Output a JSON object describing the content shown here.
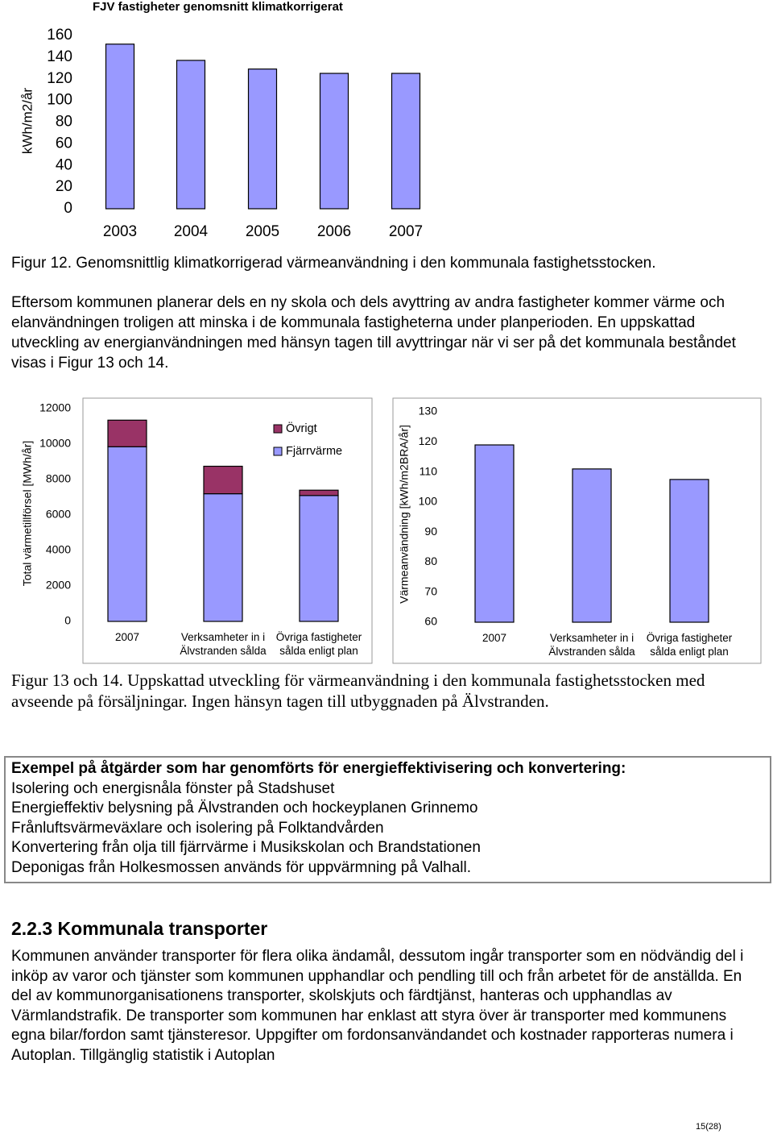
{
  "chart_data": [
    {
      "type": "bar",
      "title": "FJV fastigheter genomsnitt klimatkorrigerat",
      "y_label": "kWh/m2/år",
      "categories": [
        "2003",
        "2004",
        "2005",
        "2006",
        "2007"
      ],
      "values": [
        152,
        137,
        129,
        125,
        125
      ],
      "color": "#9999ff",
      "ylim": [
        0,
        160
      ],
      "yticks": [
        0,
        20,
        40,
        60,
        80,
        100,
        120,
        140,
        160
      ],
      "grid": false
    },
    {
      "type": "stacked_bar",
      "y_label": "Total värmetillförsel [MWh/år]",
      "categories": [
        "2007",
        "Verksamheter in i Älvstranden sålda",
        "Övriga fastigheter sålda enligt plan"
      ],
      "series": [
        {
          "name": "Fjärrvärme",
          "color": "#9999ff",
          "values": [
            9850,
            7200,
            7100
          ]
        },
        {
          "name": "Övrigt",
          "color": "#993366",
          "values": [
            1500,
            1550,
            300
          ]
        }
      ],
      "ylim": [
        0,
        12000
      ],
      "yticks": [
        0,
        2000,
        4000,
        6000,
        8000,
        10000,
        12000
      ],
      "grid": false,
      "legend": "top-right"
    },
    {
      "type": "bar",
      "y_label": "Värmeanvändning [kWh/m2BRA/år]",
      "categories": [
        "2007",
        "Verksamheter in i Älvstranden sålda",
        "Övriga fastigheter sålda enligt plan"
      ],
      "values": [
        119,
        111,
        107.5
      ],
      "color": "#9999ff",
      "ylim": [
        60,
        130
      ],
      "yticks": [
        60,
        70,
        80,
        90,
        100,
        110,
        120,
        130
      ],
      "grid": false
    }
  ],
  "document": {
    "caption_1": "Figur 12. Genomsnittlig klimatkorrigerad värmeanvändning i den kommunala fastighetsstocken.",
    "paragraph_1": "Eftersom kommunen planerar dels en ny skola och dels avyttring av andra fastigheter kommer värme och elanvändningen troligen att minska i de kommunala fastigheterna under planperioden. En uppskattad utveckling av energianvändningen med hänsyn tagen till avyttringar när vi ser på det kommunala beståndet visas i Figur 13 och 14.",
    "caption_2": "Figur 13 och 14. Uppskattad utveckling för värmeanvändning i den kommunala fastighetsstocken med avseende på försäljningar. Ingen hänsyn tagen till utbyggnaden på Älvstranden.",
    "box": {
      "heading": "Exempel på åtgärder som har genomförts för energieffektivisering och konvertering:",
      "items": [
        "Isolering och energisnåla fönster på Stadshuset",
        "Energieffektiv belysning på Älvstranden och hockeyplanen Grinnemo",
        "Frånluftsvärmeväxlare och isolering på Folktandvården",
        "Konvertering från olja till fjärrvärme i Musikskolan och Brandstationen",
        "Deponigas från Holkesmossen används för uppvärmning på Valhall."
      ]
    },
    "section_heading": "2.2.3 Kommunala transporter",
    "paragraph_2": "Kommunen använder transporter för flera olika ändamål, dessutom ingår transporter som en nödvändig del i inköp av varor och tjänster som kommunen upphandlar och pendling till och från arbetet för de anställda. En del av kommunorganisationens transporter, skolskjuts och färdtjänst, hanteras och upphandlas av Värmlandstrafik. De transporter som kommunen har enklast att styra över är transporter med kommunens egna bilar/fordon samt tjänsteresor. Uppgifter om fordonsanvändandet och kostnader rapporteras numera i Autoplan. Tillgänglig statistik i Autoplan",
    "page_number": "15(28)"
  }
}
